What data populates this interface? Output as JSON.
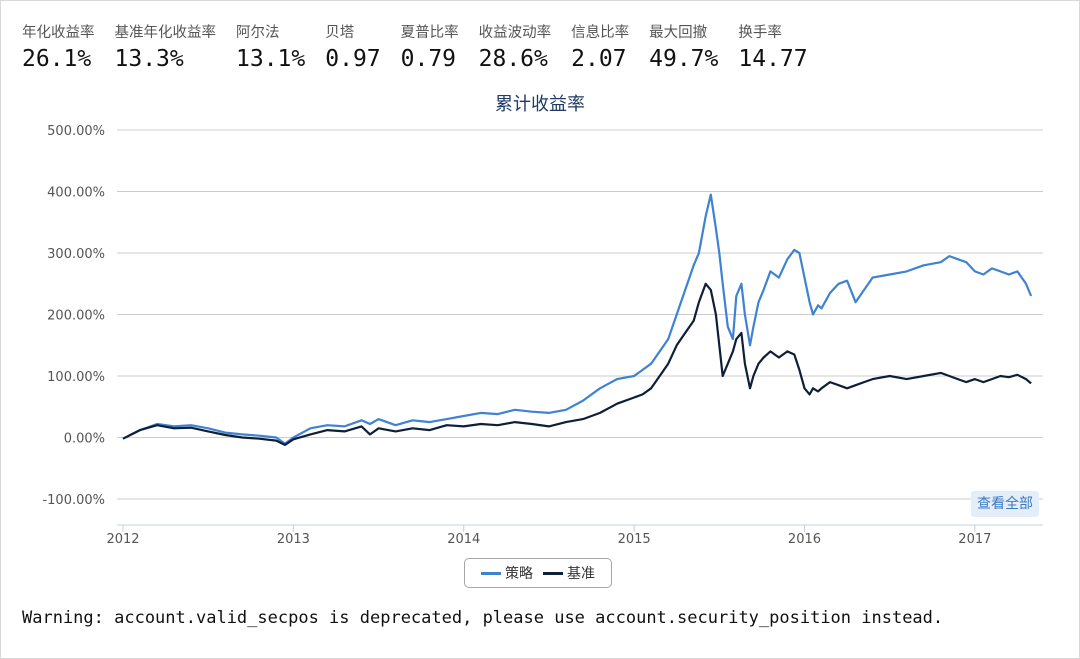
{
  "stats": [
    {
      "label": "年化收益率",
      "value": "26.1%"
    },
    {
      "label": "基准年化收益率",
      "value": "13.3%"
    },
    {
      "label": "阿尔法",
      "value": "13.1%"
    },
    {
      "label": "贝塔",
      "value": "0.97"
    },
    {
      "label": "夏普比率",
      "value": "0.79"
    },
    {
      "label": "收益波动率",
      "value": "28.6%"
    },
    {
      "label": "信息比率",
      "value": "2.07"
    },
    {
      "label": "最大回撤",
      "value": "49.7%"
    },
    {
      "label": "换手率",
      "value": "14.77"
    }
  ],
  "view_all_label": "查看全部",
  "warning": "Warning: account.valid_secpos is deprecated, please use account.security_position instead.",
  "colors": {
    "strategy": "#3f82d2",
    "benchmark": "#0e1f3a",
    "grid": "#cccccc",
    "axis_text": "#555555",
    "title": "#1f3b64"
  },
  "chart_data": {
    "type": "line",
    "title": "累计收益率",
    "xlabel": "",
    "ylabel": "",
    "ylim": [
      -120,
      500
    ],
    "yticks": [
      -100,
      0,
      100,
      200,
      300,
      400,
      500
    ],
    "ytick_labels": [
      "-100.00%",
      "0.00%",
      "100.00%",
      "200.00%",
      "300.00%",
      "400.00%",
      "500.00%"
    ],
    "xlim": [
      2012.0,
      2017.4
    ],
    "xticks": [
      2012,
      2013,
      2014,
      2015,
      2016,
      2017
    ],
    "xtick_labels": [
      "2012",
      "2013",
      "2014",
      "2015",
      "2016",
      "2017"
    ],
    "grid": true,
    "legend": "bottom-center",
    "series": [
      {
        "name": "策略",
        "color": "#3f82d2",
        "x": [
          2012.0,
          2012.05,
          2012.1,
          2012.2,
          2012.3,
          2012.4,
          2012.5,
          2012.6,
          2012.7,
          2012.8,
          2012.9,
          2012.95,
          2013.0,
          2013.1,
          2013.2,
          2013.3,
          2013.4,
          2013.45,
          2013.5,
          2013.6,
          2013.7,
          2013.8,
          2013.9,
          2014.0,
          2014.1,
          2014.2,
          2014.3,
          2014.4,
          2014.5,
          2014.6,
          2014.7,
          2014.8,
          2014.9,
          2015.0,
          2015.05,
          2015.1,
          2015.15,
          2015.2,
          2015.25,
          2015.3,
          2015.35,
          2015.38,
          2015.42,
          2015.45,
          2015.48,
          2015.5,
          2015.52,
          2015.55,
          2015.58,
          2015.6,
          2015.63,
          2015.65,
          2015.68,
          2015.7,
          2015.73,
          2015.76,
          2015.8,
          2015.85,
          2015.9,
          2015.94,
          2015.97,
          2016.0,
          2016.03,
          2016.05,
          2016.08,
          2016.1,
          2016.15,
          2016.2,
          2016.25,
          2016.3,
          2016.35,
          2016.4,
          2016.5,
          2016.6,
          2016.7,
          2016.8,
          2016.85,
          2016.9,
          2016.95,
          2017.0,
          2017.05,
          2017.1,
          2017.15,
          2017.2,
          2017.25,
          2017.3,
          2017.33
        ],
        "y": [
          -2,
          5,
          12,
          22,
          18,
          20,
          15,
          8,
          5,
          3,
          0,
          -10,
          0,
          15,
          20,
          18,
          28,
          22,
          30,
          20,
          28,
          25,
          30,
          35,
          40,
          38,
          45,
          42,
          40,
          45,
          60,
          80,
          95,
          100,
          110,
          120,
          140,
          160,
          200,
          240,
          280,
          300,
          360,
          395,
          340,
          300,
          250,
          180,
          160,
          230,
          250,
          200,
          150,
          180,
          220,
          240,
          270,
          260,
          290,
          305,
          300,
          260,
          220,
          200,
          215,
          210,
          235,
          250,
          255,
          220,
          240,
          260,
          265,
          270,
          280,
          285,
          295,
          290,
          285,
          270,
          265,
          275,
          270,
          265,
          270,
          250,
          230
        ]
      },
      {
        "name": "基准",
        "color": "#0e1f3a",
        "x": [
          2012.0,
          2012.05,
          2012.1,
          2012.2,
          2012.3,
          2012.4,
          2012.5,
          2012.6,
          2012.7,
          2012.8,
          2012.9,
          2012.95,
          2013.0,
          2013.1,
          2013.2,
          2013.3,
          2013.4,
          2013.45,
          2013.5,
          2013.6,
          2013.7,
          2013.8,
          2013.9,
          2014.0,
          2014.1,
          2014.2,
          2014.3,
          2014.4,
          2014.5,
          2014.6,
          2014.7,
          2014.8,
          2014.9,
          2015.0,
          2015.05,
          2015.1,
          2015.15,
          2015.2,
          2015.25,
          2015.3,
          2015.35,
          2015.38,
          2015.42,
          2015.45,
          2015.48,
          2015.5,
          2015.52,
          2015.55,
          2015.58,
          2015.6,
          2015.63,
          2015.65,
          2015.68,
          2015.7,
          2015.73,
          2015.76,
          2015.8,
          2015.85,
          2015.9,
          2015.94,
          2015.97,
          2016.0,
          2016.03,
          2016.05,
          2016.08,
          2016.1,
          2016.15,
          2016.2,
          2016.25,
          2016.3,
          2016.35,
          2016.4,
          2016.5,
          2016.6,
          2016.7,
          2016.8,
          2016.85,
          2016.9,
          2016.95,
          2017.0,
          2017.05,
          2017.1,
          2017.15,
          2017.2,
          2017.25,
          2017.3,
          2017.33
        ],
        "y": [
          -2,
          5,
          12,
          20,
          15,
          16,
          10,
          4,
          0,
          -2,
          -5,
          -12,
          -3,
          5,
          12,
          10,
          18,
          5,
          15,
          10,
          15,
          12,
          20,
          18,
          22,
          20,
          25,
          22,
          18,
          25,
          30,
          40,
          55,
          65,
          70,
          80,
          100,
          120,
          150,
          170,
          190,
          220,
          250,
          240,
          200,
          150,
          100,
          120,
          140,
          160,
          170,
          120,
          80,
          100,
          120,
          130,
          140,
          130,
          140,
          135,
          110,
          80,
          70,
          80,
          75,
          80,
          90,
          85,
          80,
          85,
          90,
          95,
          100,
          95,
          100,
          105,
          100,
          95,
          90,
          95,
          90,
          95,
          100,
          98,
          102,
          95,
          88
        ]
      }
    ]
  }
}
